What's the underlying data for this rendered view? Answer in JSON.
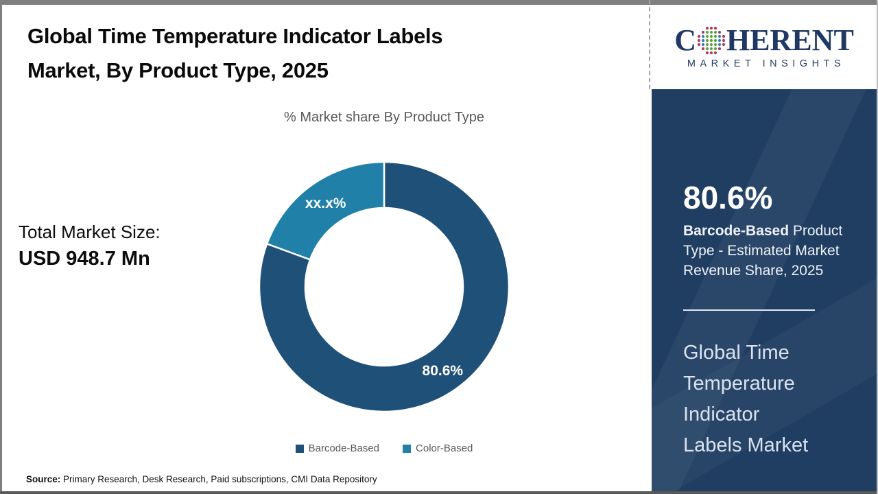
{
  "header": {
    "title": "Global Time Temperature Indicator Labels\nMarket, By Product Type, 2025"
  },
  "stats": {
    "total_label": "Total Market Size:",
    "total_value": "USD 948.7 Mn"
  },
  "chart_data": {
    "type": "pie",
    "donut": true,
    "title": "% Market share By Product Type",
    "series": [
      {
        "name": "Barcode-Based",
        "value": 80.6,
        "label": "80.6%",
        "color": "#1f5078"
      },
      {
        "name": "Color-Based",
        "value": 19.4,
        "label": "xx.x%",
        "color": "#2180a8"
      }
    ],
    "legend_position": "bottom",
    "slice_label_color": "#ffffff"
  },
  "side_panel": {
    "logo": {
      "brand_first_letter": "C",
      "brand_rest": "HERENT",
      "tagline": "MARKET INSIGHTS",
      "text_color": "#1f3864",
      "globe_colors": [
        "#b03a66",
        "#3b7bbf",
        "#5aa53c"
      ]
    },
    "highlight_value": "80.6%",
    "highlight_bold": "Barcode-Based",
    "highlight_rest": " Product Type - Estimated Market Revenue Share, 2025",
    "panel_title": "Global Time\nTemperature\nIndicator\nLabels Market",
    "panel_bg": "#203e62"
  },
  "footer": {
    "source_label": "Source:",
    "source_text": " Primary Research, Desk Research, Paid subscriptions, CMI Data Repository"
  }
}
